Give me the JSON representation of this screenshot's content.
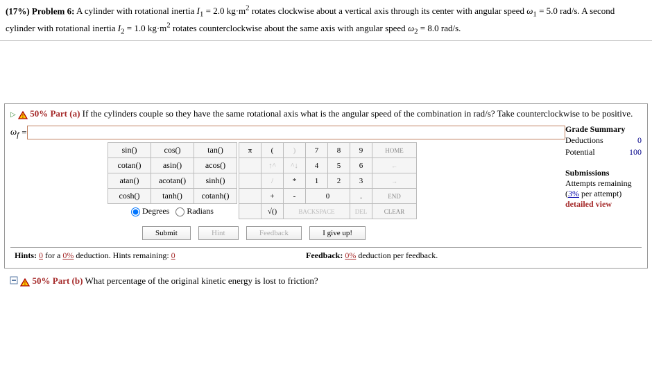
{
  "problem": {
    "heading": "(17%) Problem 6:",
    "text_html": "A cylinder with rotational inertia <i>I</i><sub>1</sub> = 2.0 kg·m<sup>2</sup> rotates clockwise about a vertical axis through its center with angular speed <i>ω</i><sub>1</sub> = 5.0 rad/s. A second cylinder with rotational inertia <i>I</i><sub>2</sub> = 1.0 kg·m<sup>2</sup> rotates counterclockwise about the same axis with angular speed <i>ω</i><sub>2</sub> = 8.0 rad/s."
  },
  "part_a": {
    "label": "50% Part (a)",
    "text": "If the cylinders couple so they have the same rotational axis what is the angular speed of the combination in rad/s? Take counterclockwise to be positive.",
    "answer_label": "ω",
    "answer_sub": "f",
    "answer_eq": " = ",
    "answer_value": ""
  },
  "calculator": {
    "funcs": [
      [
        "sin()",
        "cos()",
        "tan()"
      ],
      [
        "cotan()",
        "asin()",
        "acos()"
      ],
      [
        "atan()",
        "acotan()",
        "sinh()"
      ],
      [
        "cosh()",
        "tanh()",
        "cotanh()"
      ]
    ],
    "deg_label": "Degrees",
    "rad_label": "Radians",
    "deg_selected": true,
    "num_rows": [
      [
        "π",
        "(",
        ")",
        "7",
        "8",
        "9",
        "HOME"
      ],
      [
        "",
        "↑^",
        "^↓",
        "4",
        "5",
        "6",
        "←"
      ],
      [
        "",
        "/",
        "*",
        "1",
        "2",
        "3",
        "→"
      ],
      [
        "",
        "+",
        "-",
        "0",
        ".",
        "END"
      ],
      [
        "",
        "√()",
        "BACKSPACE",
        "DEL",
        "CLEAR"
      ]
    ],
    "submit": "Submit",
    "hint": "Hint",
    "feedback": "Feedback",
    "giveup": "I give up!"
  },
  "grade": {
    "title": "Grade Summary",
    "deductions_label": "Deductions",
    "deductions_val": "0",
    "potential_label": "Potential",
    "potential_val": "100",
    "submissions_title": "Submissions",
    "attempts_label": "Attempts remaining",
    "per_attempt_pre": "(",
    "per_attempt_pct": "3%",
    "per_attempt_post": " per attempt)",
    "detailed": "detailed view"
  },
  "hints": {
    "pre": "Hints: ",
    "count": "0",
    "mid": " for a ",
    "pct": "0%",
    "post1": " deduction. Hints remaining: ",
    "remaining": "0",
    "fb_pre": "Feedback: ",
    "fb_pct": "0%",
    "fb_post": " deduction per feedback."
  },
  "part_b": {
    "label": "50% Part (b)",
    "text": "What percentage of the original kinetic energy is lost to friction?"
  },
  "colors": {
    "part_label": "#a52a2a",
    "link": "#0000aa"
  }
}
